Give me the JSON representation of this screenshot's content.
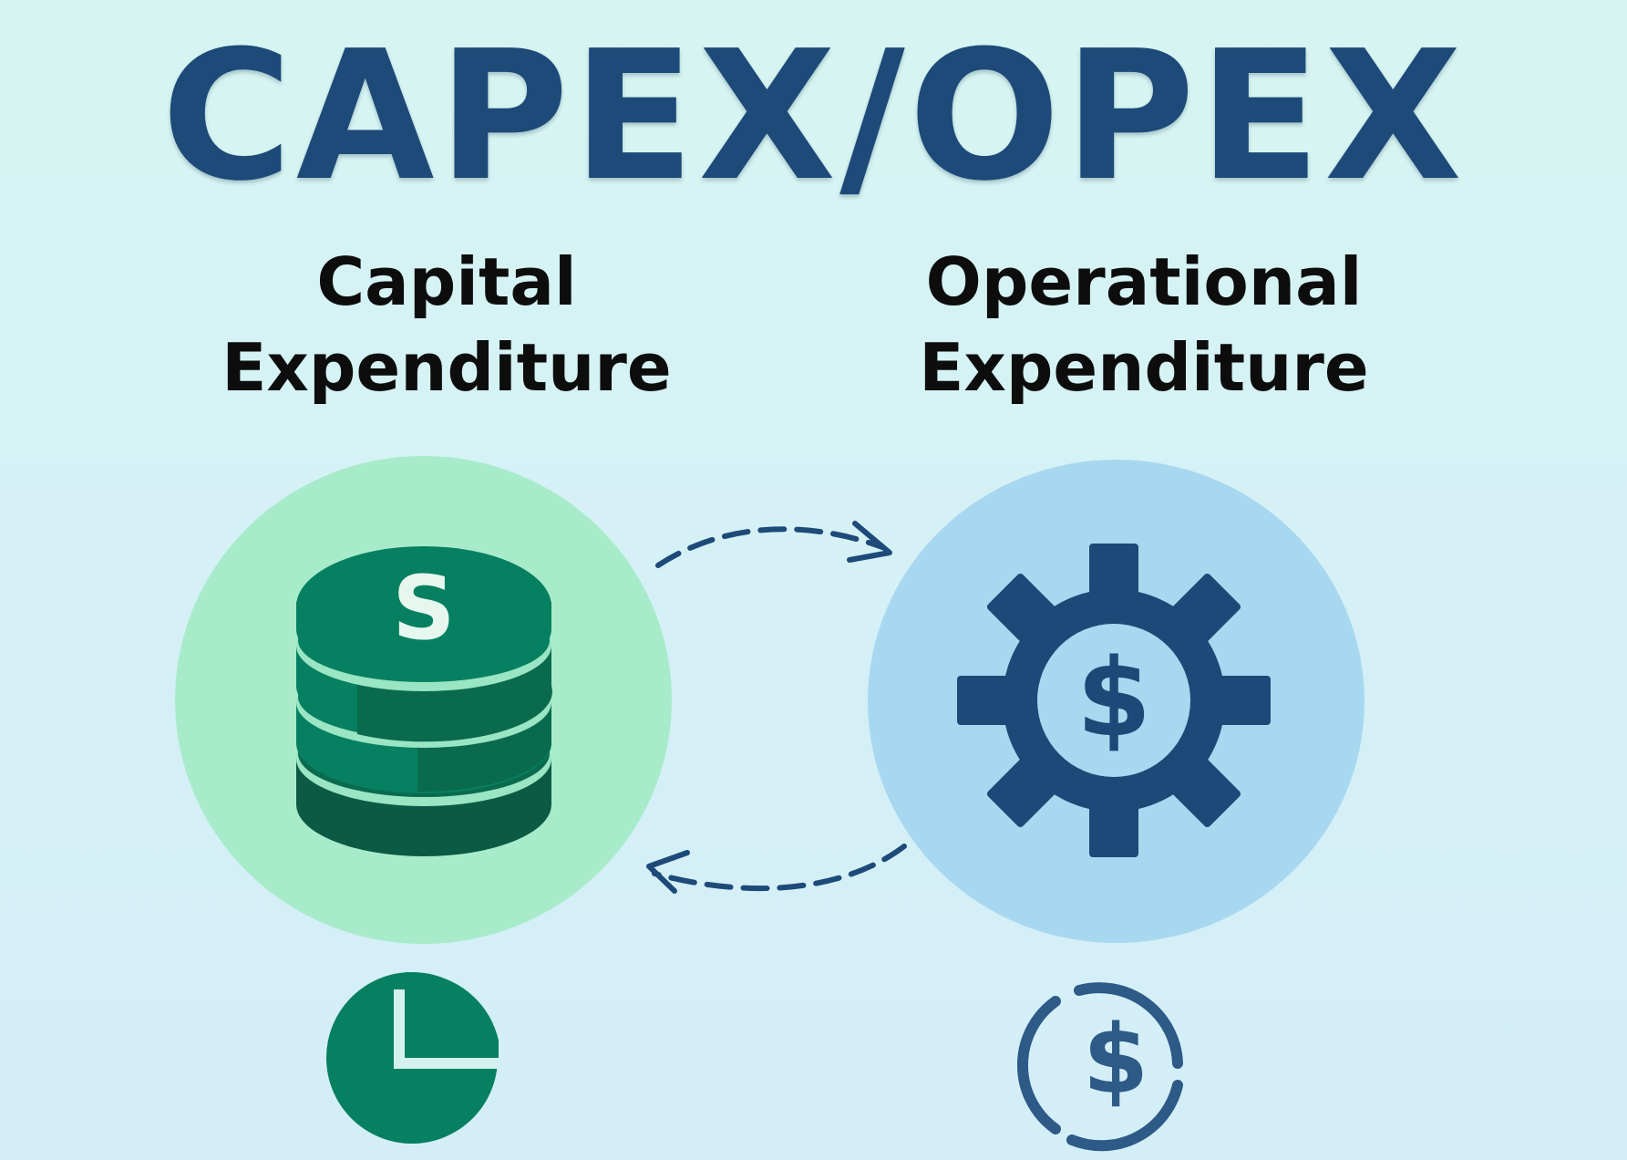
{
  "title": "CAPEX/OPEX",
  "capex": {
    "heading_line1": "Capital",
    "heading_line2": "Expenditure",
    "main_icon": "coin-stack-icon",
    "coin_symbol": "S",
    "bottom_icon": "pie-chart-icon"
  },
  "opex": {
    "heading_line1": "Operational",
    "heading_line2": "Expenditure",
    "main_icon": "gear-dollar-icon",
    "gear_symbol": "$",
    "bottom_icon": "dollar-cycle-icon",
    "bottom_symbol": "$"
  },
  "arrows": [
    "arrow-capex-to-opex-icon",
    "arrow-opex-to-capex-icon"
  ],
  "colors": {
    "title": "#1d4a78",
    "capex_circle": "#a8ebcb",
    "capex_coin": "#068060",
    "capex_coin_dark": "#0a5a44",
    "opex_circle": "#a8d8f0",
    "opex_gear": "#1b4a78",
    "arrow": "#1d4a78"
  }
}
